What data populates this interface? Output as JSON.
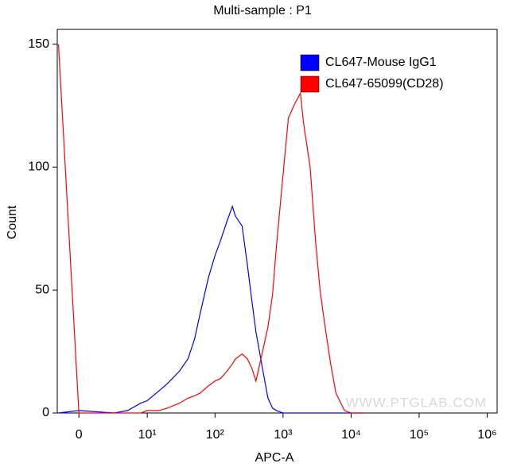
{
  "chart_data": {
    "type": "line",
    "title": "Multi-sample : P1",
    "x_label": "APC-A",
    "y_label": "Count",
    "xscale": "biexponential",
    "watermark": "WWW.PTGLAB.COM",
    "legend": "top-right",
    "x": [
      -1.5,
      0,
      3,
      5,
      8,
      10,
      15,
      20,
      30,
      40,
      50,
      60,
      80,
      100,
      120,
      150,
      180,
      200,
      250,
      300,
      350,
      400,
      500,
      600,
      700,
      800,
      1000,
      1200,
      1500,
      1800,
      2000,
      2500,
      3000,
      3500,
      4000,
      5000,
      6000,
      8000,
      10000,
      15000
    ],
    "series": [
      {
        "name": "CL647-Mouse IgG1",
        "color": "#0000ff",
        "values": [
          0,
          1,
          0,
          1,
          4,
          5,
          9,
          12,
          17,
          22,
          30,
          40,
          55,
          64,
          70,
          78,
          84,
          80,
          76,
          60,
          45,
          33,
          18,
          6,
          2,
          1,
          0,
          0,
          0,
          0,
          0,
          0,
          0,
          0,
          0,
          0,
          0,
          0,
          0,
          0
        ]
      },
      {
        "name": "CL647-65099(CD28)",
        "color": "#ff0000",
        "values": [
          150,
          0,
          0,
          0,
          0,
          1,
          1,
          2,
          4,
          6,
          7,
          8,
          11,
          13,
          14,
          17,
          20,
          22,
          24,
          22,
          18,
          13,
          25,
          35,
          48,
          68,
          97,
          120,
          126,
          130,
          118,
          100,
          70,
          50,
          38,
          20,
          8,
          1,
          0,
          0
        ]
      }
    ],
    "xlim": [
      -1.6,
      1400000
    ],
    "xticks": [
      0,
      {
        "value": 10,
        "label": "10¹"
      },
      {
        "value": 100,
        "label": "10²"
      },
      {
        "value": 1000,
        "label": "10³"
      },
      {
        "value": 10000,
        "label": "10⁴"
      },
      {
        "value": 100000,
        "label": "10⁵"
      },
      {
        "value": 1000000,
        "label": "10⁶"
      }
    ],
    "ylim": [
      0,
      156
    ],
    "yticks": [
      0,
      50,
      100,
      150
    ]
  }
}
